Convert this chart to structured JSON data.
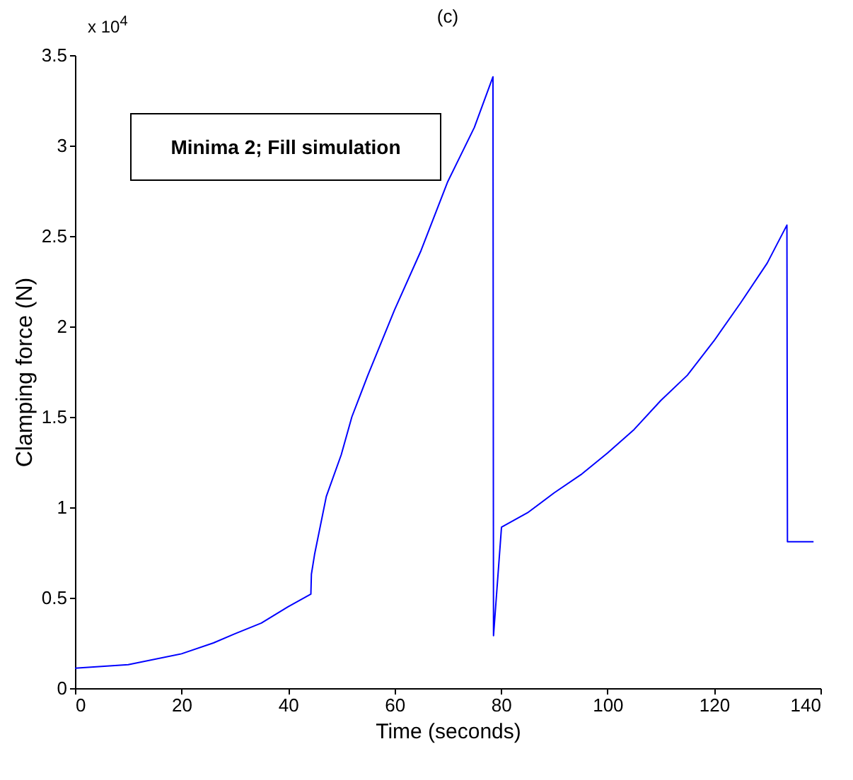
{
  "chart_data": {
    "type": "line",
    "title": "(c)",
    "xlabel": "Time (seconds)",
    "ylabel": "Clamping force (N)",
    "annotations": [
      "x 10$^{4}$",
      "Minima 2; Fill simulation"
    ],
    "xlim": [
      0,
      140
    ],
    "xticks": [
      0,
      20,
      40,
      60,
      80,
      100,
      120,
      140
    ],
    "ylim": [
      0,
      3.5
    ],
    "yticks": [
      0,
      0.5,
      1,
      1.5,
      2,
      2.5,
      3,
      3.5
    ],
    "series": [
      {
        "color": "#0000ff",
        "x": [
          0,
          10,
          20,
          26,
          30,
          35,
          40,
          44.3,
          44.4,
          45,
          47.2,
          50,
          52,
          55,
          60,
          65,
          70,
          75,
          78.5,
          78.6,
          80.1,
          85,
          90,
          95,
          100,
          105,
          110,
          115,
          120,
          125,
          130,
          133.7,
          133.8,
          138.7
        ],
        "values": [
          0.11,
          0.13,
          0.19,
          0.25,
          0.3,
          0.36,
          0.45,
          0.52,
          0.63,
          0.74,
          1.06,
          1.29,
          1.5,
          1.73,
          2.09,
          2.42,
          2.8,
          3.1,
          3.38,
          0.29,
          0.89,
          0.97,
          1.08,
          1.18,
          1.3,
          1.43,
          1.59,
          1.73,
          1.92,
          2.13,
          2.35,
          2.56,
          0.81,
          0.81
        ]
      }
    ]
  }
}
